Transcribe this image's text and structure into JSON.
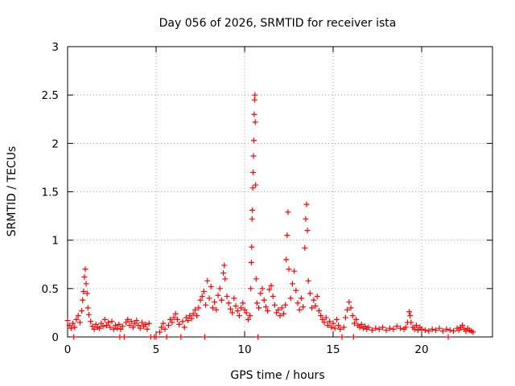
{
  "chart_data": {
    "type": "scatter",
    "title": "Day 056 of 2026, SRMTID for receiver ista",
    "xlabel": "GPS time / hours",
    "ylabel": "SRMTID / TECUs",
    "xlim": [
      0,
      24
    ],
    "ylim": [
      0,
      3
    ],
    "grid": true,
    "marker": "+",
    "color": "#ff0000",
    "xticks": [
      {
        "value": 0,
        "label": "0"
      },
      {
        "value": 5,
        "label": "5"
      },
      {
        "value": 10,
        "label": "10"
      },
      {
        "value": 15,
        "label": "15"
      },
      {
        "value": 20,
        "label": "20"
      }
    ],
    "yticks": [
      {
        "value": 0,
        "label": "0"
      },
      {
        "value": 0.5,
        "label": "0.5"
      },
      {
        "value": 1,
        "label": "1"
      },
      {
        "value": 1.5,
        "label": "1.5"
      },
      {
        "value": 2,
        "label": "2"
      },
      {
        "value": 2.5,
        "label": "2.5"
      },
      {
        "value": 3,
        "label": "3"
      }
    ],
    "points": [
      [
        0.0,
        0.17
      ],
      [
        0.1,
        0.12
      ],
      [
        0.2,
        0.09
      ],
      [
        0.3,
        0.14
      ],
      [
        0.35,
        0.0
      ],
      [
        0.4,
        0.1
      ],
      [
        0.5,
        0.18
      ],
      [
        0.6,
        0.22
      ],
      [
        0.7,
        0.15
      ],
      [
        0.8,
        0.27
      ],
      [
        0.85,
        0.38
      ],
      [
        0.9,
        0.47
      ],
      [
        0.95,
        0.62
      ],
      [
        1.0,
        0.7
      ],
      [
        1.05,
        0.55
      ],
      [
        1.1,
        0.45
      ],
      [
        1.15,
        0.3
      ],
      [
        1.2,
        0.23
      ],
      [
        1.3,
        0.16
      ],
      [
        1.4,
        0.11
      ],
      [
        1.5,
        0.08
      ],
      [
        1.6,
        0.13
      ],
      [
        1.7,
        0.1
      ],
      [
        1.8,
        0.09
      ],
      [
        1.9,
        0.14
      ],
      [
        2.0,
        0.11
      ],
      [
        2.1,
        0.18
      ],
      [
        2.2,
        0.12
      ],
      [
        2.3,
        0.15
      ],
      [
        2.4,
        0.1
      ],
      [
        2.5,
        0.16
      ],
      [
        2.6,
        0.08
      ],
      [
        2.7,
        0.12
      ],
      [
        2.8,
        0.09
      ],
      [
        2.9,
        0.13
      ],
      [
        2.95,
        0.0
      ],
      [
        3.0,
        0.08
      ],
      [
        3.1,
        0.11
      ],
      [
        3.2,
        0.0
      ],
      [
        3.3,
        0.15
      ],
      [
        3.4,
        0.18
      ],
      [
        3.5,
        0.12
      ],
      [
        3.6,
        0.16
      ],
      [
        3.7,
        0.1
      ],
      [
        3.8,
        0.14
      ],
      [
        3.9,
        0.17
      ],
      [
        4.0,
        0.12
      ],
      [
        4.1,
        0.09
      ],
      [
        4.2,
        0.15
      ],
      [
        4.3,
        0.11
      ],
      [
        4.4,
        0.13
      ],
      [
        4.5,
        0.08
      ],
      [
        4.6,
        0.14
      ],
      [
        4.7,
        0.0
      ],
      [
        4.9,
        0.0
      ],
      [
        5.0,
        0.0
      ],
      [
        5.2,
        0.05
      ],
      [
        5.3,
        0.1
      ],
      [
        5.4,
        0.14
      ],
      [
        5.5,
        0.08
      ],
      [
        5.6,
        0.0
      ],
      [
        5.7,
        0.12
      ],
      [
        5.8,
        0.18
      ],
      [
        5.9,
        0.15
      ],
      [
        6.0,
        0.2
      ],
      [
        6.1,
        0.24
      ],
      [
        6.2,
        0.18
      ],
      [
        6.3,
        0.13
      ],
      [
        6.4,
        0.0
      ],
      [
        6.5,
        0.16
      ],
      [
        6.6,
        0.1
      ],
      [
        6.7,
        0.2
      ],
      [
        6.8,
        0.17
      ],
      [
        6.9,
        0.22
      ],
      [
        7.0,
        0.19
      ],
      [
        7.1,
        0.24
      ],
      [
        7.2,
        0.28
      ],
      [
        7.3,
        0.22
      ],
      [
        7.4,
        0.3
      ],
      [
        7.5,
        0.38
      ],
      [
        7.6,
        0.42
      ],
      [
        7.7,
        0.47
      ],
      [
        7.75,
        0.0
      ],
      [
        7.8,
        0.33
      ],
      [
        7.9,
        0.58
      ],
      [
        8.0,
        0.4
      ],
      [
        8.1,
        0.52
      ],
      [
        8.2,
        0.3
      ],
      [
        8.3,
        0.36
      ],
      [
        8.4,
        0.28
      ],
      [
        8.5,
        0.43
      ],
      [
        8.6,
        0.5
      ],
      [
        8.7,
        0.38
      ],
      [
        8.8,
        0.66
      ],
      [
        8.85,
        0.74
      ],
      [
        8.9,
        0.6
      ],
      [
        9.0,
        0.42
      ],
      [
        9.1,
        0.35
      ],
      [
        9.2,
        0.29
      ],
      [
        9.3,
        0.25
      ],
      [
        9.4,
        0.4
      ],
      [
        9.5,
        0.32
      ],
      [
        9.6,
        0.27
      ],
      [
        9.7,
        0.22
      ],
      [
        9.8,
        0.3
      ],
      [
        9.9,
        0.35
      ],
      [
        10.0,
        0.28
      ],
      [
        10.1,
        0.25
      ],
      [
        10.2,
        0.18
      ],
      [
        10.3,
        0.22
      ],
      [
        10.35,
        0.5
      ],
      [
        10.38,
        0.77
      ],
      [
        10.4,
        0.93
      ],
      [
        10.42,
        1.22
      ],
      [
        10.44,
        1.31
      ],
      [
        10.46,
        1.54
      ],
      [
        10.48,
        1.7
      ],
      [
        10.5,
        1.87
      ],
      [
        10.52,
        2.03
      ],
      [
        10.54,
        2.3
      ],
      [
        10.56,
        2.45
      ],
      [
        10.58,
        2.5
      ],
      [
        10.6,
        2.22
      ],
      [
        10.62,
        1.57
      ],
      [
        10.65,
        0.6
      ],
      [
        10.7,
        0.35
      ],
      [
        10.75,
        0.0
      ],
      [
        10.8,
        0.3
      ],
      [
        10.9,
        0.45
      ],
      [
        11.0,
        0.5
      ],
      [
        11.1,
        0.38
      ],
      [
        11.2,
        0.31
      ],
      [
        11.3,
        0.27
      ],
      [
        11.4,
        0.49
      ],
      [
        11.5,
        0.53
      ],
      [
        11.6,
        0.42
      ],
      [
        11.7,
        0.33
      ],
      [
        11.8,
        0.25
      ],
      [
        11.9,
        0.28
      ],
      [
        12.0,
        0.22
      ],
      [
        12.1,
        0.3
      ],
      [
        12.2,
        0.24
      ],
      [
        12.3,
        0.33
      ],
      [
        12.35,
        0.8
      ],
      [
        12.4,
        1.05
      ],
      [
        12.45,
        1.29
      ],
      [
        12.5,
        0.7
      ],
      [
        12.6,
        0.4
      ],
      [
        12.7,
        0.55
      ],
      [
        12.8,
        0.68
      ],
      [
        12.9,
        0.48
      ],
      [
        13.0,
        0.35
      ],
      [
        13.1,
        0.28
      ],
      [
        13.2,
        0.4
      ],
      [
        13.3,
        0.31
      ],
      [
        13.4,
        0.92
      ],
      [
        13.45,
        1.22
      ],
      [
        13.5,
        1.37
      ],
      [
        13.55,
        1.1
      ],
      [
        13.6,
        0.58
      ],
      [
        13.7,
        0.45
      ],
      [
        13.8,
        0.3
      ],
      [
        13.9,
        0.38
      ],
      [
        14.0,
        0.32
      ],
      [
        14.1,
        0.42
      ],
      [
        14.2,
        0.27
      ],
      [
        14.3,
        0.22
      ],
      [
        14.4,
        0.18
      ],
      [
        14.5,
        0.15
      ],
      [
        14.6,
        0.2
      ],
      [
        14.7,
        0.12
      ],
      [
        14.8,
        0.16
      ],
      [
        14.9,
        0.1
      ],
      [
        15.0,
        0.14
      ],
      [
        15.1,
        0.09
      ],
      [
        15.2,
        0.18
      ],
      [
        15.3,
        0.12
      ],
      [
        15.4,
        0.08
      ],
      [
        15.5,
        0.0
      ],
      [
        15.6,
        0.1
      ],
      [
        15.7,
        0.2
      ],
      [
        15.8,
        0.28
      ],
      [
        15.9,
        0.36
      ],
      [
        16.0,
        0.3
      ],
      [
        16.1,
        0.22
      ],
      [
        16.15,
        0.0
      ],
      [
        16.2,
        0.14
      ],
      [
        16.3,
        0.18
      ],
      [
        16.4,
        0.12
      ],
      [
        16.5,
        0.1
      ],
      [
        16.6,
        0.13
      ],
      [
        16.7,
        0.09
      ],
      [
        16.8,
        0.11
      ],
      [
        16.9,
        0.08
      ],
      [
        17.0,
        0.1
      ],
      [
        17.2,
        0.07
      ],
      [
        17.4,
        0.09
      ],
      [
        17.6,
        0.08
      ],
      [
        17.8,
        0.1
      ],
      [
        18.0,
        0.07
      ],
      [
        18.2,
        0.09
      ],
      [
        18.4,
        0.08
      ],
      [
        18.6,
        0.11
      ],
      [
        18.8,
        0.09
      ],
      [
        19.0,
        0.08
      ],
      [
        19.1,
        0.1
      ],
      [
        19.2,
        0.15
      ],
      [
        19.3,
        0.26
      ],
      [
        19.35,
        0.22
      ],
      [
        19.4,
        0.15
      ],
      [
        19.5,
        0.1
      ],
      [
        19.6,
        0.08
      ],
      [
        19.7,
        0.12
      ],
      [
        19.8,
        0.07
      ],
      [
        19.9,
        0.1
      ],
      [
        20.0,
        0.08
      ],
      [
        20.2,
        0.07
      ],
      [
        20.4,
        0.06
      ],
      [
        20.6,
        0.08
      ],
      [
        20.8,
        0.07
      ],
      [
        21.0,
        0.09
      ],
      [
        21.2,
        0.06
      ],
      [
        21.4,
        0.08
      ],
      [
        21.5,
        0.0
      ],
      [
        21.6,
        0.07
      ],
      [
        21.8,
        0.06
      ],
      [
        22.0,
        0.09
      ],
      [
        22.1,
        0.07
      ],
      [
        22.2,
        0.1
      ],
      [
        22.3,
        0.12
      ],
      [
        22.4,
        0.08
      ],
      [
        22.5,
        0.06
      ],
      [
        22.6,
        0.09
      ],
      [
        22.7,
        0.07
      ],
      [
        22.8,
        0.06
      ],
      [
        22.9,
        0.05
      ]
    ]
  }
}
